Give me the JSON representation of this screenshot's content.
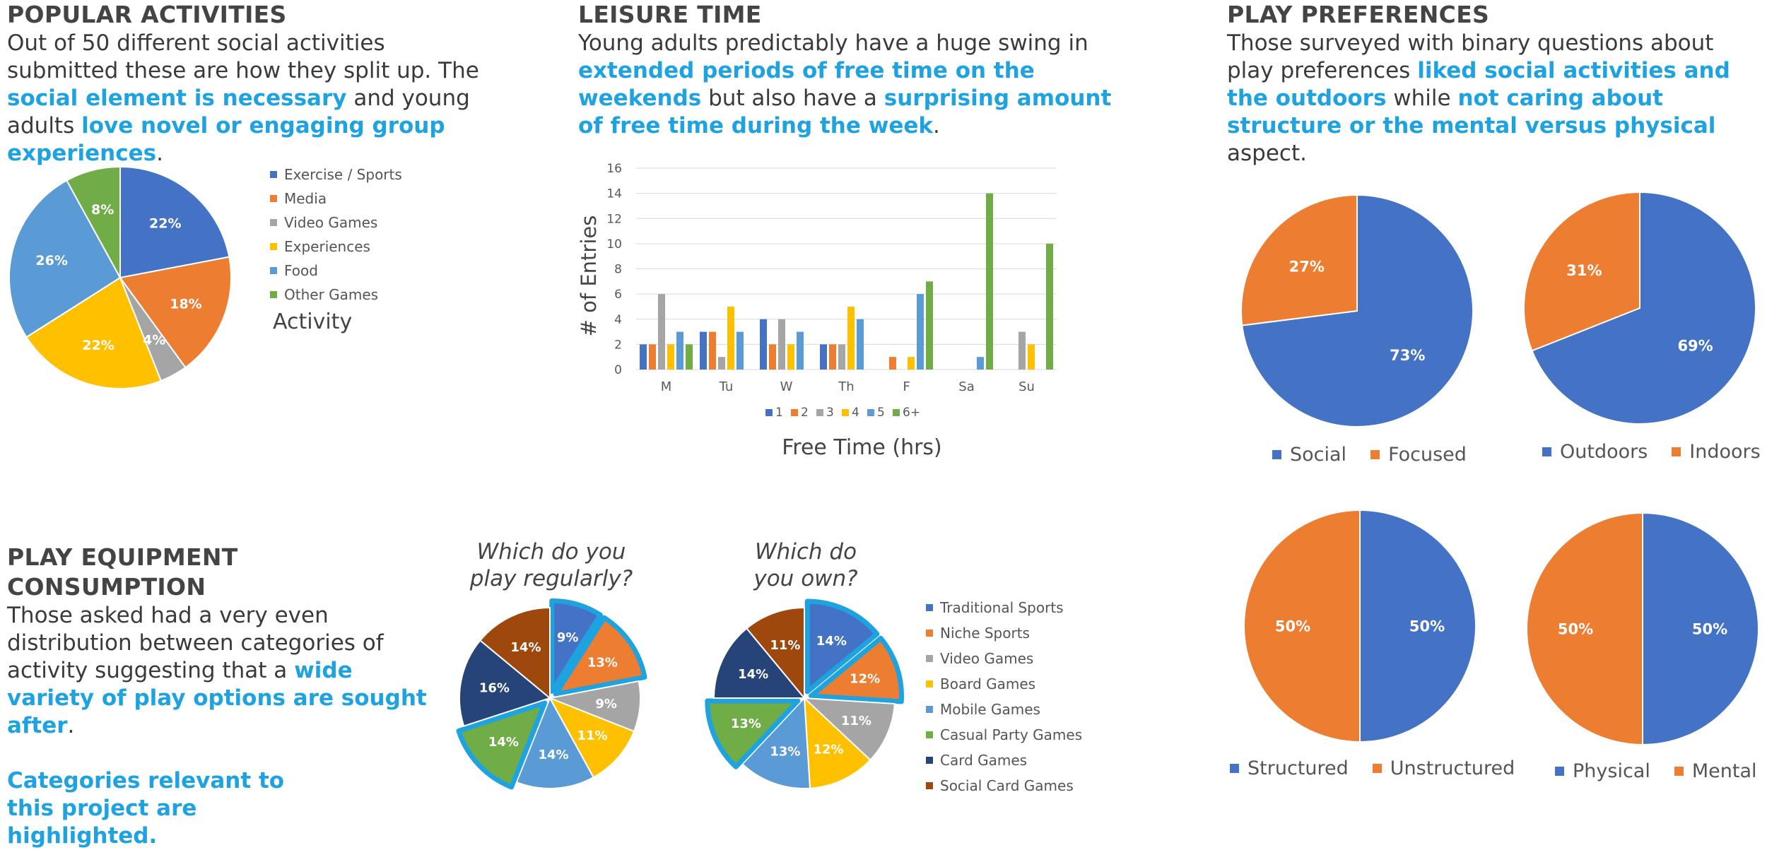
{
  "popular": {
    "title": "POPULAR ACTIVITIES",
    "text_1": "Out of 50 different social activities submitted these are how they split up. The ",
    "hl_1": "social element is necessary",
    "text_2": " and young adults ",
    "hl_2": "love novel or engaging group experiences",
    "text_3": ".",
    "legend_title": "Activity"
  },
  "leisure": {
    "title": "LEISURE TIME",
    "text_1": "Young adults predictably have a huge swing in ",
    "hl_1": "extended periods of free time on the weekends",
    "text_2": " but also have a ",
    "hl_2": "surprising amount of free time during the week",
    "text_3": "."
  },
  "play_pref": {
    "title": "PLAY PREFERENCES",
    "text_1": "Those surveyed with binary questions about play preferences ",
    "hl_1": "liked social activities and the outdoors",
    "text_2": " while ",
    "hl_2": "not caring about structure or the mental versus physical",
    "text_3": " aspect."
  },
  "equipment": {
    "title": "PLAY EQUIPMENT CONSUMPTION",
    "text_1": "Those asked had a very even distribution between categories of activity suggesting that a ",
    "hl_1": "wide variety of play options are sought after",
    "text_2": ".",
    "note": "Categories relevant  to this project are highlighted.",
    "q1": "Which do you play regularly?",
    "q2": "Which do you own?"
  },
  "colors": {
    "blue": "#4472c4",
    "orange": "#ed7d31",
    "gray": "#a5a5a5",
    "yellow": "#ffc000",
    "lightblue": "#5b9bd5",
    "green": "#70ad47",
    "navy": "#264478",
    "brown": "#9e480e",
    "highlight": "#1ea3e0"
  },
  "chart_data": [
    {
      "id": "activities",
      "type": "pie",
      "title": "Activity",
      "categories": [
        "Exercise / Sports",
        "Media",
        "Video Games",
        "Experiences",
        "Food",
        "Other Games"
      ],
      "values": [
        22,
        18,
        4,
        22,
        26,
        8
      ],
      "labels": [
        "22%",
        "18%",
        "4%",
        "22%",
        "26%",
        "8%"
      ],
      "colors": [
        "#4472c4",
        "#ed7d31",
        "#a5a5a5",
        "#ffc000",
        "#5b9bd5",
        "#70ad47"
      ]
    },
    {
      "id": "leisure",
      "type": "bar",
      "xlabel": "Free Time (hrs)",
      "ylabel": "# of Entries",
      "ylim": [
        0,
        16
      ],
      "yticks": [
        "0",
        "2",
        "4",
        "6",
        "8",
        "10",
        "12",
        "14",
        "16"
      ],
      "categories": [
        "M",
        "Tu",
        "W",
        "Th",
        "F",
        "Sa",
        "Su"
      ],
      "series": [
        {
          "name": "1",
          "color": "#4472c4",
          "values": [
            2,
            3,
            4,
            2,
            0,
            0,
            0
          ]
        },
        {
          "name": "2",
          "color": "#ed7d31",
          "values": [
            2,
            3,
            2,
            2,
            1,
            0,
            0
          ]
        },
        {
          "name": "3",
          "color": "#a5a5a5",
          "values": [
            6,
            1,
            4,
            2,
            0,
            0,
            3
          ]
        },
        {
          "name": "4",
          "color": "#ffc000",
          "values": [
            2,
            5,
            2,
            5,
            1,
            0,
            2
          ]
        },
        {
          "name": "5",
          "color": "#5b9bd5",
          "values": [
            3,
            3,
            3,
            4,
            6,
            1,
            0
          ]
        },
        {
          "name": "6+",
          "color": "#70ad47",
          "values": [
            2,
            0,
            0,
            0,
            7,
            14,
            10
          ]
        }
      ]
    },
    {
      "id": "social",
      "type": "pie",
      "categories": [
        "Social",
        "Focused"
      ],
      "values": [
        73,
        27
      ],
      "labels": [
        "73%",
        "27%"
      ],
      "colors": [
        "#4472c4",
        "#ed7d31"
      ]
    },
    {
      "id": "outdoors",
      "type": "pie",
      "categories": [
        "Outdoors",
        "Indoors"
      ],
      "values": [
        69,
        31
      ],
      "labels": [
        "69%",
        "31%"
      ],
      "colors": [
        "#4472c4",
        "#ed7d31"
      ]
    },
    {
      "id": "structured",
      "type": "pie",
      "categories": [
        "Structured",
        "Unstructured"
      ],
      "values": [
        50,
        50
      ],
      "labels": [
        "50%",
        "50%"
      ],
      "colors": [
        "#4472c4",
        "#ed7d31"
      ]
    },
    {
      "id": "physical",
      "type": "pie",
      "categories": [
        "Physical",
        "Mental"
      ],
      "values": [
        50,
        50
      ],
      "labels": [
        "50%",
        "50%"
      ],
      "colors": [
        "#4472c4",
        "#ed7d31"
      ]
    },
    {
      "id": "regularly",
      "type": "pie",
      "title": "Which do you play regularly?",
      "categories": [
        "Traditional Sports",
        "Niche Sports",
        "Video Games",
        "Board Games",
        "Mobile Games",
        "Casual Party Games",
        "Card Games",
        "Social Card Games"
      ],
      "values": [
        9,
        13,
        9,
        11,
        14,
        14,
        16,
        14
      ],
      "labels": [
        "9%",
        "13%",
        "9%",
        "11%",
        "14%",
        "14%",
        "16%",
        "14%"
      ],
      "highlighted": [
        true,
        true,
        false,
        false,
        false,
        true,
        false,
        false
      ],
      "colors": [
        "#4472c4",
        "#ed7d31",
        "#a5a5a5",
        "#ffc000",
        "#5b9bd5",
        "#70ad47",
        "#264478",
        "#9e480e"
      ]
    },
    {
      "id": "own",
      "type": "pie",
      "title": "Which do you own?",
      "categories": [
        "Traditional Sports",
        "Niche Sports",
        "Video Games",
        "Board Games",
        "Mobile Games",
        "Casual Party Games",
        "Card Games",
        "Social Card Games"
      ],
      "values": [
        14,
        12,
        11,
        12,
        13,
        13,
        14,
        11
      ],
      "labels": [
        "14%",
        "12%",
        "11%",
        "12%",
        "13%",
        "13%",
        "14%",
        "11%"
      ],
      "highlighted": [
        true,
        true,
        false,
        false,
        false,
        true,
        false,
        false
      ],
      "colors": [
        "#4472c4",
        "#ed7d31",
        "#a5a5a5",
        "#ffc000",
        "#5b9bd5",
        "#70ad47",
        "#264478",
        "#9e480e"
      ]
    }
  ]
}
